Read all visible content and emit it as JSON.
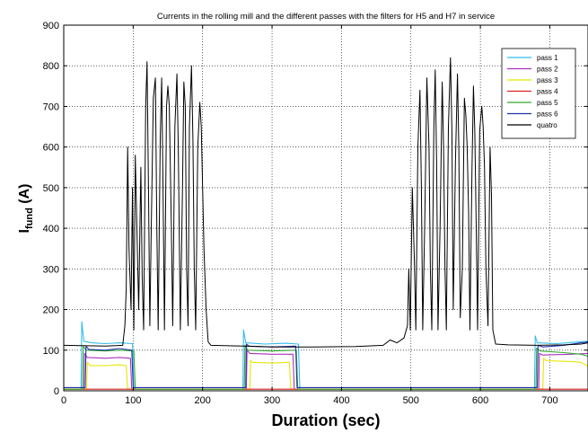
{
  "chart_data": {
    "type": "line",
    "title": "Currents in the rolling mill and the different passes with the filters for H5 and H7 in service",
    "xlabel": "Duration (sec)",
    "ylabel_main": "I",
    "ylabel_sub": "fund",
    "ylabel_unit": " (A)",
    "xlim": [
      0,
      755
    ],
    "ylim": [
      0,
      900
    ],
    "xticks": [
      0,
      100,
      200,
      300,
      400,
      500,
      600,
      700
    ],
    "yticks": [
      0,
      100,
      200,
      300,
      400,
      500,
      600,
      700,
      800,
      900
    ],
    "grid": true,
    "legend_position": "top-right",
    "series": [
      {
        "name": "pass 1",
        "color": "#33bbee",
        "points": [
          [
            0,
            4
          ],
          [
            25,
            4
          ],
          [
            26,
            170
          ],
          [
            29,
            122
          ],
          [
            40,
            118
          ],
          [
            60,
            116
          ],
          [
            80,
            118
          ],
          [
            99,
            116
          ],
          [
            101,
            4
          ],
          [
            258,
            4
          ],
          [
            259,
            150
          ],
          [
            262,
            118
          ],
          [
            290,
            115
          ],
          [
            320,
            117
          ],
          [
            338,
            115
          ],
          [
            340,
            4
          ],
          [
            678,
            4
          ],
          [
            679,
            135
          ],
          [
            682,
            118
          ],
          [
            710,
            116
          ],
          [
            740,
            120
          ],
          [
            755,
            122
          ]
        ]
      },
      {
        "name": "pass 2",
        "color": "#aa33bb",
        "points": [
          [
            0,
            4
          ],
          [
            29,
            4
          ],
          [
            30,
            92
          ],
          [
            34,
            82
          ],
          [
            60,
            80
          ],
          [
            80,
            82
          ],
          [
            96,
            80
          ],
          [
            98,
            4
          ],
          [
            263,
            4
          ],
          [
            264,
            100
          ],
          [
            268,
            92
          ],
          [
            300,
            90
          ],
          [
            330,
            90
          ],
          [
            332,
            4
          ],
          [
            684,
            4
          ],
          [
            685,
            92
          ],
          [
            690,
            88
          ],
          [
            730,
            90
          ],
          [
            755,
            92
          ]
        ]
      },
      {
        "name": "pass 3",
        "color": "#e6e600",
        "points": [
          [
            0,
            4
          ],
          [
            33,
            4
          ],
          [
            34,
            70
          ],
          [
            38,
            62
          ],
          [
            60,
            62
          ],
          [
            80,
            64
          ],
          [
            90,
            62
          ],
          [
            92,
            4
          ],
          [
            268,
            4
          ],
          [
            269,
            75
          ],
          [
            272,
            70
          ],
          [
            300,
            68
          ],
          [
            325,
            70
          ],
          [
            327,
            4
          ],
          [
            690,
            4
          ],
          [
            691,
            80
          ],
          [
            695,
            74
          ],
          [
            730,
            72
          ],
          [
            745,
            70
          ],
          [
            755,
            60
          ]
        ]
      },
      {
        "name": "pass 4",
        "color": "#dd2222",
        "points": [
          [
            0,
            4
          ],
          [
            755,
            4
          ]
        ]
      },
      {
        "name": "pass 5",
        "color": "#33aa33",
        "points": [
          [
            0,
            4
          ],
          [
            27,
            4
          ],
          [
            28,
            110
          ],
          [
            32,
            100
          ],
          [
            60,
            98
          ],
          [
            80,
            100
          ],
          [
            101,
            98
          ],
          [
            103,
            4
          ],
          [
            260,
            4
          ],
          [
            261,
            112
          ],
          [
            265,
            100
          ],
          [
            300,
            98
          ],
          [
            335,
            100
          ],
          [
            337,
            4
          ],
          [
            680,
            4
          ],
          [
            681,
            105
          ],
          [
            686,
            98
          ],
          [
            720,
            94
          ],
          [
            745,
            90
          ],
          [
            755,
            85
          ]
        ]
      },
      {
        "name": "pass 6",
        "color": "#2233aa",
        "points": [
          [
            0,
            8
          ],
          [
            31,
            8
          ],
          [
            32,
            110
          ],
          [
            36,
            102
          ],
          [
            60,
            100
          ],
          [
            80,
            104
          ],
          [
            98,
            100
          ],
          [
            100,
            8
          ],
          [
            262,
            8
          ],
          [
            263,
            115
          ],
          [
            267,
            110
          ],
          [
            300,
            108
          ],
          [
            334,
            110
          ],
          [
            336,
            8
          ],
          [
            682,
            8
          ],
          [
            683,
            112
          ],
          [
            690,
            108
          ],
          [
            720,
            112
          ],
          [
            745,
            118
          ],
          [
            755,
            120
          ]
        ]
      },
      {
        "name": "quatro",
        "color": "#000000",
        "points": [
          [
            0,
            112
          ],
          [
            60,
            110
          ],
          [
            85,
            112
          ],
          [
            88,
            160
          ],
          [
            90,
            250
          ],
          [
            92,
            600
          ],
          [
            94,
            350
          ],
          [
            97,
            200
          ],
          [
            99,
            500
          ],
          [
            101,
            150
          ],
          [
            103,
            580
          ],
          [
            106,
            350
          ],
          [
            108,
            200
          ],
          [
            111,
            550
          ],
          [
            113,
            280
          ],
          [
            115,
            150
          ],
          [
            118,
            700
          ],
          [
            120,
            810
          ],
          [
            122,
            500
          ],
          [
            124,
            160
          ],
          [
            126,
            400
          ],
          [
            129,
            720
          ],
          [
            132,
            770
          ],
          [
            134,
            400
          ],
          [
            136,
            150
          ],
          [
            139,
            620
          ],
          [
            141,
            770
          ],
          [
            143,
            500
          ],
          [
            145,
            150
          ],
          [
            148,
            700
          ],
          [
            150,
            750
          ],
          [
            152,
            700
          ],
          [
            155,
            400
          ],
          [
            157,
            160
          ],
          [
            160,
            650
          ],
          [
            163,
            780
          ],
          [
            165,
            600
          ],
          [
            168,
            150
          ],
          [
            171,
            500
          ],
          [
            173,
            760
          ],
          [
            175,
            700
          ],
          [
            177,
            300
          ],
          [
            179,
            160
          ],
          [
            181,
            650
          ],
          [
            184,
            800
          ],
          [
            186,
            620
          ],
          [
            188,
            300
          ],
          [
            190,
            150
          ],
          [
            193,
            600
          ],
          [
            196,
            710
          ],
          [
            198,
            650
          ],
          [
            200,
            500
          ],
          [
            202,
            350
          ],
          [
            205,
            200
          ],
          [
            208,
            120
          ],
          [
            212,
            112
          ],
          [
            260,
            110
          ],
          [
            300,
            108
          ],
          [
            360,
            108
          ],
          [
            420,
            109
          ],
          [
            460,
            112
          ],
          [
            470,
            125
          ],
          [
            480,
            118
          ],
          [
            490,
            130
          ],
          [
            495,
            160
          ],
          [
            497,
            300
          ],
          [
            499,
            150
          ],
          [
            502,
            500
          ],
          [
            505,
            320
          ],
          [
            507,
            150
          ],
          [
            510,
            600
          ],
          [
            513,
            740
          ],
          [
            515,
            500
          ],
          [
            517,
            150
          ],
          [
            520,
            420
          ],
          [
            523,
            770
          ],
          [
            526,
            600
          ],
          [
            528,
            300
          ],
          [
            530,
            150
          ],
          [
            533,
            650
          ],
          [
            535,
            790
          ],
          [
            537,
            560
          ],
          [
            539,
            150
          ],
          [
            542,
            400
          ],
          [
            545,
            760
          ],
          [
            547,
            600
          ],
          [
            549,
            300
          ],
          [
            551,
            150
          ],
          [
            554,
            650
          ],
          [
            557,
            820
          ],
          [
            559,
            640
          ],
          [
            561,
            200
          ],
          [
            564,
            560
          ],
          [
            567,
            780
          ],
          [
            569,
            600
          ],
          [
            571,
            180
          ],
          [
            574,
            300
          ],
          [
            577,
            720
          ],
          [
            579,
            680
          ],
          [
            581,
            600
          ],
          [
            583,
            440
          ],
          [
            585,
            150
          ],
          [
            588,
            550
          ],
          [
            590,
            750
          ],
          [
            592,
            640
          ],
          [
            594,
            400
          ],
          [
            596,
            150
          ],
          [
            599,
            640
          ],
          [
            602,
            700
          ],
          [
            604,
            650
          ],
          [
            606,
            550
          ],
          [
            608,
            300
          ],
          [
            611,
            160
          ],
          [
            614,
            600
          ],
          [
            616,
            480
          ],
          [
            618,
            150
          ],
          [
            622,
            115
          ],
          [
            640,
            113
          ],
          [
            680,
            112
          ],
          [
            720,
            113
          ],
          [
            745,
            115
          ],
          [
            755,
            118
          ]
        ]
      }
    ]
  }
}
